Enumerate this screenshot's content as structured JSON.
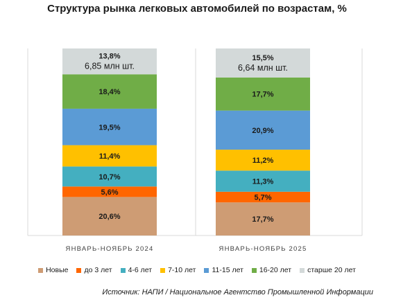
{
  "chart_data": {
    "type": "bar",
    "stacked": true,
    "title": "Структура рынка легковых автомобилей по возрастам, %",
    "categories": [
      "ЯНВАРЬ-НОЯБРЬ 2024",
      "ЯНВАРЬ-НОЯБРЬ 2025"
    ],
    "totals": [
      "6,85 млн шт.",
      "6,64 млн шт."
    ],
    "series": [
      {
        "name": "Новые",
        "color": "#CE9C74",
        "values": [
          20.6,
          17.7
        ],
        "labels": [
          "20,6%",
          "17,7%"
        ]
      },
      {
        "name": "до 3 лет",
        "color": "#FF6600",
        "values": [
          5.6,
          5.7
        ],
        "labels": [
          "5,6%",
          "5,7%"
        ]
      },
      {
        "name": "4-6 лет",
        "color": "#44AFC0",
        "values": [
          10.7,
          11.3
        ],
        "labels": [
          "10,7%",
          "11,3%"
        ]
      },
      {
        "name": "7-10 лет",
        "color": "#FFC000",
        "values": [
          11.4,
          11.2
        ],
        "labels": [
          "11,4%",
          "11,2%"
        ]
      },
      {
        "name": "11-15 лет",
        "color": "#5B9BD5",
        "values": [
          19.5,
          20.9
        ],
        "labels": [
          "19,5%",
          "20,9%"
        ]
      },
      {
        "name": "16-20 лет",
        "color": "#70AD47",
        "values": [
          18.4,
          17.7
        ],
        "labels": [
          "18,4%",
          "17,7%"
        ]
      },
      {
        "name": "старше 20 лет",
        "color": "#D3D9D9",
        "values": [
          13.8,
          15.5
        ],
        "labels": [
          "13,8%",
          "15,5%"
        ]
      }
    ],
    "ylim": [
      0,
      100
    ],
    "grid": false,
    "legend_position": "bottom"
  },
  "source": "Источник: НАПИ / Национальное Агентство Промышленной Информации"
}
